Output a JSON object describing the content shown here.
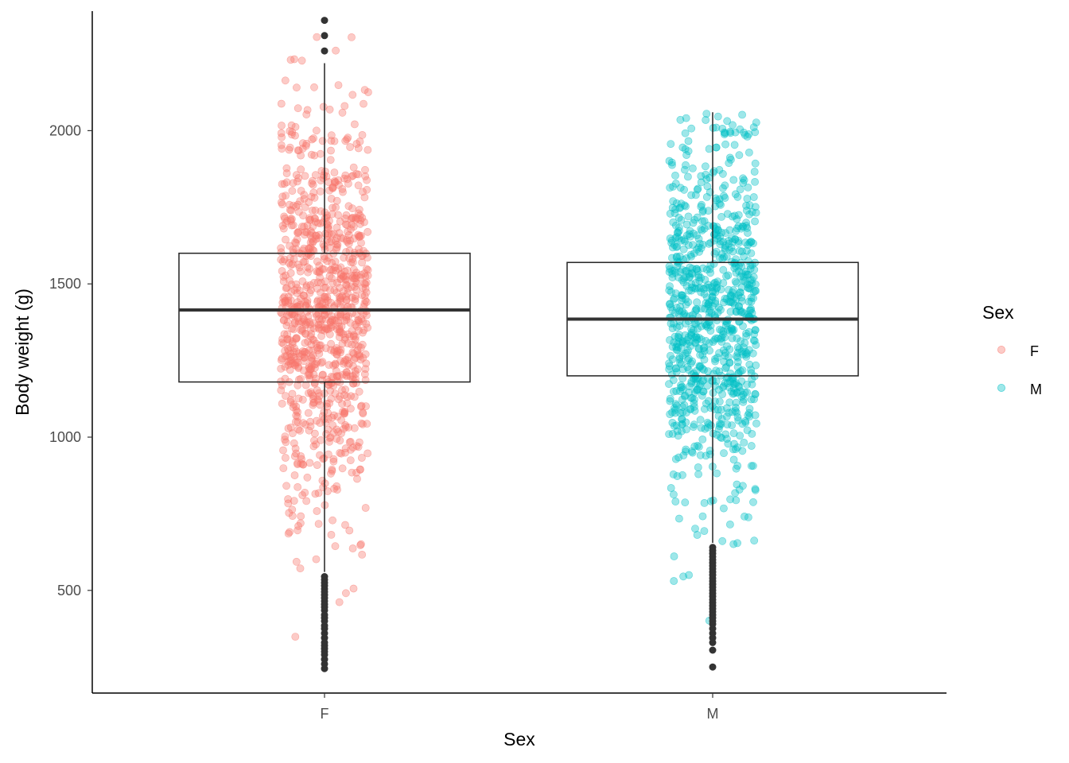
{
  "chart_data": {
    "type": "box",
    "overlay": "jitter",
    "xlabel": "Sex",
    "ylabel": "Body weight (g)",
    "categories": [
      "F",
      "M"
    ],
    "yticks": [
      500,
      1000,
      1500,
      2000
    ],
    "ylim": [
      165,
      2390
    ],
    "grid": false,
    "legend": {
      "title": "Sex",
      "position": "right",
      "entries": [
        {
          "label": "F",
          "color": "#F8766D"
        },
        {
          "label": "M",
          "color": "#00BFC4"
        }
      ]
    },
    "series": [
      {
        "name": "F",
        "color": "#F8766D",
        "box": {
          "q1": 1180,
          "median": 1415,
          "q3": 1600,
          "whisker_low": 560,
          "whisker_high": 2220
        },
        "outliers": [
          245,
          260,
          275,
          290,
          300,
          310,
          320,
          330,
          345,
          360,
          375,
          385,
          400,
          410,
          420,
          435,
          445,
          455,
          465,
          475,
          485,
          495,
          505,
          515,
          525,
          535,
          545,
          2260,
          2310,
          2360
        ],
        "jitter": {
          "n": 1000,
          "mean": 1400,
          "sd": 320,
          "min": 245,
          "max": 2360,
          "seed": 7
        }
      },
      {
        "name": "M",
        "color": "#00BFC4",
        "box": {
          "q1": 1200,
          "median": 1385,
          "q3": 1570,
          "whisker_low": 655,
          "whisker_high": 2060
        },
        "outliers": [
          250,
          305,
          330,
          345,
          360,
          375,
          390,
          400,
          410,
          420,
          430,
          440,
          450,
          460,
          470,
          480,
          490,
          500,
          510,
          520,
          530,
          540,
          550,
          560,
          570,
          580,
          590,
          600,
          610,
          620,
          630,
          640
        ],
        "jitter": {
          "n": 900,
          "mean": 1390,
          "sd": 290,
          "min": 250,
          "max": 2060,
          "seed": 23
        }
      }
    ]
  }
}
